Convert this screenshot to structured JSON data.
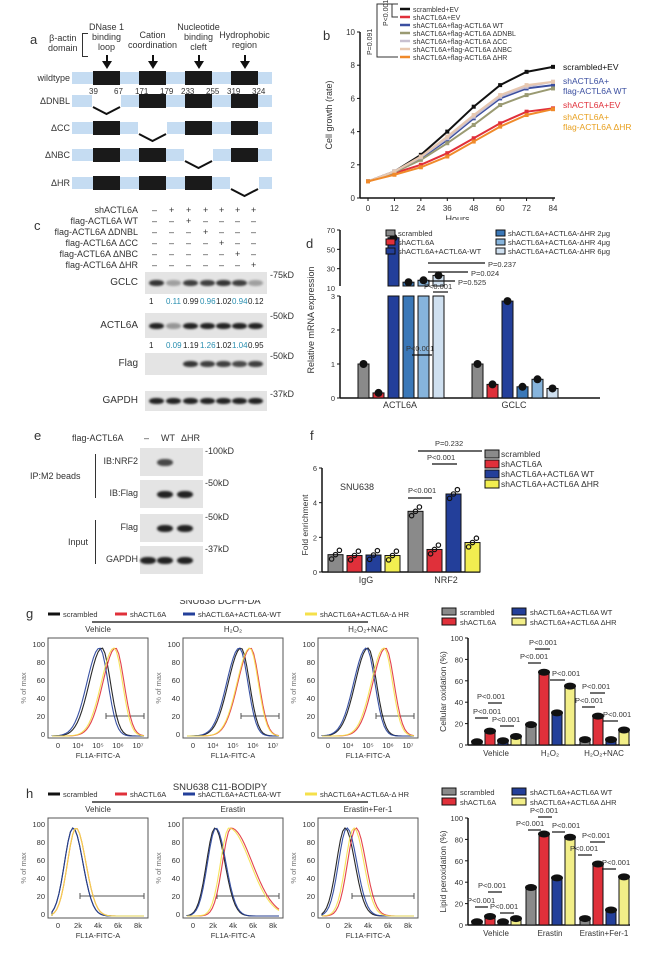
{
  "panels": {
    "a": {
      "label": "a",
      "domain_label": [
        "β-actin",
        "domain"
      ],
      "regions": [
        {
          "name": "DNase 1 binding loop",
          "lines": [
            "DNase 1",
            "binding",
            "loop"
          ],
          "start": "39",
          "end": "67"
        },
        {
          "name": "Cation coordination",
          "lines": [
            "Cation",
            "coordination"
          ],
          "start": "171",
          "end": "179"
        },
        {
          "name": "Nucleotide binding cleft",
          "lines": [
            "Nucleotide",
            "binding",
            "cleft"
          ],
          "start": "233",
          "end": "255"
        },
        {
          "name": "Hydrophobic region",
          "lines": [
            "Hydrophobic",
            "region"
          ],
          "start": "319",
          "end": "324"
        }
      ],
      "constructs": [
        {
          "name": "wildtype",
          "deleted": -1
        },
        {
          "name": "ΔDNBL",
          "deleted": 0
        },
        {
          "name": "ΔCC",
          "deleted": 1
        },
        {
          "name": "ΔNBC",
          "deleted": 2
        },
        {
          "name": "ΔHR",
          "deleted": 3
        }
      ],
      "colors": {
        "backbone": "#c5dcf2",
        "domain": "#1a1a1a"
      }
    },
    "b": {
      "label": "b",
      "stats": [
        "P<0.001",
        "P=0.091"
      ]
    },
    "c": {
      "label": "c",
      "rows": [
        {
          "name": "shACTL6A",
          "marks": [
            "–",
            "+",
            "+",
            "+",
            "+",
            "+",
            "+"
          ]
        },
        {
          "name": "flag-ACTL6A WT",
          "marks": [
            "–",
            "–",
            "+",
            "–",
            "–",
            "–",
            "–"
          ]
        },
        {
          "name": "flag-ACTL6A ΔDNBL",
          "marks": [
            "–",
            "–",
            "–",
            "+",
            "–",
            "–",
            "–"
          ]
        },
        {
          "name": "flag-ACTL6A ΔCC",
          "marks": [
            "–",
            "–",
            "–",
            "–",
            "+",
            "–",
            "–"
          ]
        },
        {
          "name": "flag-ACTL6A ΔNBC",
          "marks": [
            "–",
            "–",
            "–",
            "–",
            "–",
            "+",
            "–"
          ]
        },
        {
          "name": "flag-ACTL6A ΔHR",
          "marks": [
            "–",
            "–",
            "–",
            "–",
            "–",
            "–",
            "+"
          ]
        }
      ],
      "blots": [
        {
          "name": "GCLC",
          "marker": "-75kD",
          "quant": [
            "1",
            "0.11",
            "0.99",
            "0.96",
            "1.02",
            "0.94",
            "0.12"
          ],
          "intensity": [
            0.9,
            0.35,
            0.85,
            0.85,
            0.9,
            0.85,
            0.35
          ]
        },
        {
          "name": "ACTL6A",
          "marker": "-50kD",
          "quant": [
            "1",
            "0.09",
            "1.19",
            "1.26",
            "1.02",
            "1.04",
            "0.95"
          ],
          "intensity": [
            1,
            0.4,
            1,
            1,
            1,
            1,
            1
          ]
        },
        {
          "name": "Flag",
          "marker": "-50kD",
          "quant": [],
          "intensity": [
            0,
            0,
            0.9,
            0.85,
            0.85,
            0.8,
            0.85
          ]
        },
        {
          "name": "GAPDH",
          "marker": "-37kD",
          "quant": [],
          "intensity": [
            1,
            1,
            1,
            1,
            1,
            1,
            1
          ]
        }
      ],
      "quant_colors": [
        "#222222",
        "#2a8fb0"
      ]
    },
    "d": {
      "label": "d"
    },
    "e": {
      "label": "e",
      "header": "flag-ACTL6A",
      "lanes": [
        "–",
        "WT",
        "ΔHR"
      ],
      "groups": [
        {
          "name": "IP:M2 beads",
          "blots": [
            {
              "name": "IB:NRF2",
              "marker": "-100kD",
              "intensity": [
                0,
                0.8,
                0
              ]
            },
            {
              "name": "IB:Flag",
              "marker": "-50kD",
              "intensity": [
                0,
                1,
                1
              ]
            }
          ]
        },
        {
          "name": "Input",
          "blots": [
            {
              "name": "Flag",
              "marker": "-50kD",
              "intensity": [
                0,
                1,
                1
              ]
            },
            {
              "name": "GAPDH",
              "marker": "-37kD",
              "intensity": [
                1,
                1,
                1
              ]
            }
          ]
        }
      ]
    },
    "f": {
      "label": "f",
      "cell_line": "SNU638"
    },
    "g": {
      "label": "g",
      "title": "SNU638 DCFH-DA",
      "legend": [
        "scrambled",
        "shACTL6A",
        "shACTL6A+ACTL6A-WT",
        "shACTL6A+ACTL6A-Δ HR"
      ],
      "subplots": [
        "Vehicle",
        "H₂O₂",
        "H₂O₂+NAC"
      ],
      "xlabel": "FL1A-FITC-A",
      "ylabel": "% of max",
      "xticks": [
        "0",
        "10⁴",
        "10⁵",
        "10⁶",
        "10⁷"
      ],
      "yticks": [
        "0",
        "20",
        "40",
        "60",
        "80",
        "100"
      ]
    },
    "h": {
      "label": "h",
      "title": "SNU638 C11-BODIPY",
      "legend": [
        "scrambled",
        "shACTL6A",
        "shACTL6A+ACTL6A-WT",
        "shACTL6A+ACTL6A-Δ HR"
      ],
      "subplots": [
        "Vehicle",
        "Erastin",
        "Erastin+Fer-1"
      ],
      "xlabel": "FL1A-FITC-A",
      "ylabel": "% of max",
      "xticks": [
        "0",
        "2k",
        "4k",
        "6k",
        "8k"
      ],
      "yticks": [
        "0",
        "20",
        "40",
        "60",
        "80",
        "100"
      ]
    }
  },
  "colors": {
    "black": "#111111",
    "red": "#e0303a",
    "blue": "#233f9a",
    "yellow": "#f2ee88",
    "grey": "#8a8a8a",
    "orange": "#f08a2a"
  },
  "chart_data": [
    {
      "id": "b",
      "type": "line",
      "title": "",
      "xlabel": "Hours",
      "ylabel": "Cell growth (rate)",
      "x": [
        0,
        12,
        24,
        36,
        48,
        60,
        72,
        84
      ],
      "xlim": [
        0,
        84
      ],
      "ylim": [
        0,
        10
      ],
      "yticks": [
        0,
        2,
        4,
        6,
        8,
        10
      ],
      "legend_position": "top-left",
      "series": [
        {
          "name": "scrambled+EV",
          "color": "#111111",
          "values": [
            1,
            1.6,
            2.6,
            4.0,
            5.5,
            6.8,
            7.6,
            7.9
          ]
        },
        {
          "name": "shACTL6A+EV",
          "color": "#e0303a",
          "values": [
            1,
            1.5,
            2.0,
            2.7,
            3.6,
            4.5,
            5.2,
            5.4
          ]
        },
        {
          "name": "shACTL6A+flag-ACTL6A WT",
          "color": "#3b4fa0",
          "values": [
            1,
            1.6,
            2.4,
            3.5,
            4.8,
            6.0,
            6.6,
            6.8
          ]
        },
        {
          "name": "shACTL6A+flag-ACTL6A ΔDNBL",
          "color": "#9a9a72",
          "values": [
            1,
            1.55,
            2.3,
            3.3,
            4.4,
            5.6,
            6.2,
            6.6
          ]
        },
        {
          "name": "shACTL6A+flag-ACTL6A ΔCC",
          "color": "#c8c0d0",
          "values": [
            1,
            1.6,
            2.45,
            3.6,
            4.9,
            6.1,
            6.7,
            7.0
          ]
        },
        {
          "name": "shACTL6A+flag-ACTL6A ΔNBC",
          "color": "#e8c8b0",
          "values": [
            1,
            1.6,
            2.5,
            3.7,
            5.0,
            6.2,
            6.8,
            7.0
          ]
        },
        {
          "name": "shACTL6A+flag-ACTL6A ΔHR",
          "color": "#f08a2a",
          "values": [
            1,
            1.4,
            1.85,
            2.5,
            3.4,
            4.3,
            5.0,
            5.35
          ]
        }
      ],
      "annotations": [
        "scrambled+EV",
        "shACTL6A+ flag-ACTL6A WT",
        "shACTL6A+EV",
        "shACTL6A+ flag-ACTL6A ΔHR",
        "P<0.001",
        "P=0.091"
      ]
    },
    {
      "id": "d",
      "type": "bar",
      "xlabel": "",
      "ylabel": "Relative mRNA expression",
      "categories": [
        "ACTL6A",
        "GCLC"
      ],
      "yticks_lower": [
        0,
        1,
        2,
        3
      ],
      "yticks_upper": [
        10,
        30,
        50,
        70
      ],
      "axis_break": [
        3,
        10
      ],
      "series": [
        {
          "name": "scrambled",
          "color": "#8a8a8a",
          "values": [
            1.0,
            1.0
          ]
        },
        {
          "name": "shACTL6A",
          "color": "#e0303a",
          "values": [
            0.15,
            0.4
          ]
        },
        {
          "name": "shACTL6A+ACTL6A-WT",
          "color": "#233f9a",
          "values": [
            62,
            2.85
          ]
        },
        {
          "name": "shACTL6A+ACTL6A-ΔHR 2μg",
          "color": "#3a78b8",
          "values": [
            16,
            0.33
          ]
        },
        {
          "name": "shACTL6A+ACTL6A-ΔHR 4μg",
          "color": "#86b4dc",
          "values": [
            18,
            0.55
          ]
        },
        {
          "name": "shACTL6A+ACTL6A-ΔHR 6μg",
          "color": "#cfe0f0",
          "values": [
            23,
            0.28
          ]
        }
      ],
      "annotations": [
        "P=0.237",
        "P=0.024",
        "P=0.525",
        "P<0.001",
        "P<0.001"
      ]
    },
    {
      "id": "f",
      "type": "bar",
      "xlabel": "",
      "ylabel": "Fold enrichment",
      "categories": [
        "IgG",
        "NRF2"
      ],
      "ylim": [
        0,
        6
      ],
      "yticks": [
        0,
        2,
        4,
        6
      ],
      "series": [
        {
          "name": "scrambled",
          "color": "#8a8a8a",
          "values": [
            1.0,
            3.5
          ]
        },
        {
          "name": "shACTL6A",
          "color": "#e0303a",
          "values": [
            0.95,
            1.3
          ]
        },
        {
          "name": "shACTL6A+ACTL6A WT",
          "color": "#233f9a",
          "values": [
            0.98,
            4.5
          ]
        },
        {
          "name": "shACTL6A+ACTL6A ΔHR",
          "color": "#f2ee50",
          "values": [
            0.95,
            1.7
          ]
        }
      ],
      "annotations": [
        "P=0.232",
        "P<0.001",
        "P<0.001"
      ],
      "text": "SNU638"
    },
    {
      "id": "g-right",
      "type": "bar",
      "xlabel": "",
      "ylabel": "Cellular oxidation (%)",
      "categories": [
        "Vehicle",
        "H₂O₂",
        "H₂O₂+NAC"
      ],
      "ylim": [
        0,
        100
      ],
      "yticks": [
        0,
        20,
        40,
        60,
        80,
        100
      ],
      "series": [
        {
          "name": "scrambled",
          "color": "#8a8a8a",
          "values": [
            3,
            19,
            5
          ]
        },
        {
          "name": "shACTL6A",
          "color": "#e0303a",
          "values": [
            13,
            68,
            27
          ]
        },
        {
          "name": "shACTL6A+ACTL6A WT",
          "color": "#233f9a",
          "values": [
            4,
            30,
            5
          ]
        },
        {
          "name": "shACTL6A+ACTL6A ΔHR",
          "color": "#f2ee88",
          "values": [
            8,
            55,
            14
          ]
        }
      ],
      "annotations": [
        "P<0.001",
        "P<0.001",
        "P<0.001",
        "P<0.001",
        "P<0.001",
        "P<0.001",
        "P<0.001",
        "P<0.001",
        "P<0.001"
      ]
    },
    {
      "id": "h-right",
      "type": "bar",
      "xlabel": "",
      "ylabel": "Lipid peroxidation (%)",
      "categories": [
        "Vehicle",
        "Erastin",
        "Erastin+Fer-1"
      ],
      "ylim": [
        0,
        100
      ],
      "yticks": [
        0,
        20,
        40,
        60,
        80,
        100
      ],
      "series": [
        {
          "name": "scrambled",
          "color": "#8a8a8a",
          "values": [
            3,
            35,
            6
          ]
        },
        {
          "name": "shACTL6A",
          "color": "#e0303a",
          "values": [
            8,
            85,
            57
          ]
        },
        {
          "name": "shACTL6A+ACTL6A WT",
          "color": "#233f9a",
          "values": [
            3,
            44,
            14
          ]
        },
        {
          "name": "shACTL6A+ACTL6A ΔHR",
          "color": "#f2ee88",
          "values": [
            6,
            82,
            45
          ]
        }
      ],
      "annotations": [
        "P<0.001",
        "P<0.001",
        "P<0.001",
        "P<0.001",
        "P<0.001",
        "P<0.001",
        "P<0.001",
        "P<0.001",
        "P<0.001"
      ]
    },
    {
      "id": "g-histograms",
      "type": "line",
      "title": "SNU638 DCFH-DA",
      "xlabel": "FL1A-FITC-A",
      "ylabel": "% of max",
      "ylim": [
        0,
        100
      ],
      "subplots": [
        {
          "name": "Vehicle",
          "peaks": {
            "scrambled": 0.55,
            "shACTL6A": 0.72,
            "shACTL6A+ACTL6A-WT": 0.52,
            "shACTL6A+ACTL6A-ΔHR": 0.7
          }
        },
        {
          "name": "H₂O₂",
          "peaks": {
            "scrambled": 0.6,
            "shACTL6A": 0.72,
            "shACTL6A+ACTL6A-WT": 0.58,
            "shACTL6A+ACTL6A-ΔHR": 0.71
          }
        },
        {
          "name": "H₂O₂+NAC",
          "peaks": {
            "scrambled": 0.5,
            "shACTL6A": 0.72,
            "shACTL6A+ACTL6A-WT": 0.48,
            "shACTL6A+ACTL6A-ΔHR": 0.7
          }
        }
      ]
    },
    {
      "id": "h-histograms",
      "type": "line",
      "title": "SNU638 C11-BODIPY",
      "xlabel": "FL1A-FITC-A",
      "ylabel": "% of max",
      "ylim": [
        0,
        100
      ],
      "subplots": [
        {
          "name": "Vehicle",
          "peaks": {
            "scrambled": 1500,
            "shACTL6A": 1800,
            "shACTL6A+ACTL6A-WT": 1500,
            "shACTL6A+ACTL6A-ΔHR": 1800
          }
        },
        {
          "name": "Erastin",
          "peaks": {
            "scrambled": 2200,
            "shACTL6A": 3800,
            "shACTL6A+ACTL6A-WT": 2300,
            "shACTL6A+ACTL6A-ΔHR": 3600
          }
        },
        {
          "name": "Erastin+Fer-1",
          "peaks": {
            "scrambled": 1700,
            "shACTL6A": 2800,
            "shACTL6A+ACTL6A-WT": 1900,
            "shACTL6A+ACTL6A-ΔHR": 2600
          }
        }
      ]
    }
  ]
}
